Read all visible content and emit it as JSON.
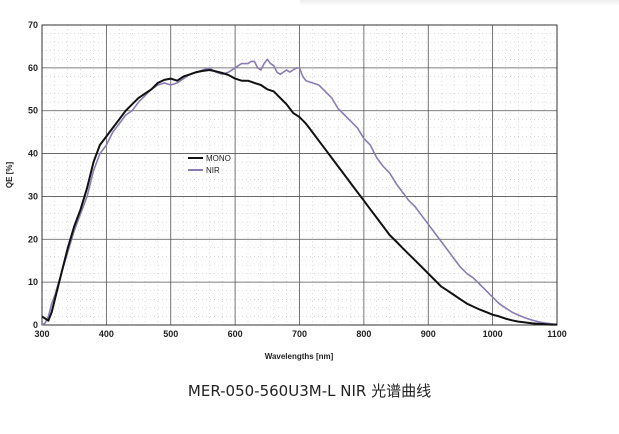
{
  "caption": "MER-050-560U3M-L NIR 光谱曲线",
  "chart_data": {
    "type": "line",
    "title": "",
    "xlabel": "Wavelengths [nm]",
    "ylabel": "QE [%]",
    "xlim": [
      300,
      1100
    ],
    "ylim": [
      0,
      70
    ],
    "xticks": [
      300,
      400,
      500,
      600,
      700,
      800,
      900,
      1000,
      1100
    ],
    "yticks": [
      0,
      10,
      20,
      30,
      40,
      50,
      60,
      70
    ],
    "grid": true,
    "legend": "center-left",
    "series": [
      {
        "name": "MONO",
        "color": "#111111",
        "x": [
          300,
          305,
          310,
          315,
          320,
          330,
          340,
          350,
          360,
          370,
          380,
          390,
          400,
          410,
          420,
          430,
          440,
          450,
          460,
          470,
          480,
          490,
          500,
          510,
          520,
          530,
          540,
          550,
          560,
          570,
          580,
          590,
          600,
          610,
          620,
          630,
          640,
          650,
          660,
          670,
          680,
          690,
          700,
          710,
          720,
          730,
          740,
          750,
          760,
          770,
          780,
          790,
          800,
          810,
          820,
          830,
          840,
          850,
          860,
          870,
          880,
          890,
          900,
          910,
          920,
          930,
          940,
          950,
          960,
          970,
          980,
          990,
          1000,
          1010,
          1020,
          1030,
          1040,
          1050,
          1060,
          1070,
          1080,
          1090,
          1100
        ],
        "y": [
          2,
          1.5,
          1,
          3,
          6,
          12,
          18,
          23,
          27,
          32,
          38,
          42,
          44,
          46,
          48,
          50,
          51.5,
          53,
          54,
          55,
          56.5,
          57.2,
          57.5,
          57,
          58,
          58.5,
          59,
          59.3,
          59.5,
          59.2,
          58.8,
          58.3,
          57.5,
          57,
          57,
          56.5,
          56,
          55,
          54.5,
          53,
          51.5,
          49.5,
          48.5,
          47,
          45,
          43,
          41,
          39,
          37,
          35,
          33,
          31,
          29,
          27,
          25,
          23,
          21,
          19.5,
          18,
          16.5,
          15,
          13.5,
          12,
          10.5,
          9,
          8,
          7,
          6,
          5,
          4.3,
          3.6,
          3,
          2.4,
          2,
          1.5,
          1.1,
          0.8,
          0.6,
          0.4,
          0.3,
          0.2,
          0.1,
          0.1
        ]
      },
      {
        "name": "NIR",
        "color": "#8a7bb5",
        "x": [
          300,
          305,
          310,
          315,
          320,
          330,
          340,
          350,
          360,
          370,
          380,
          390,
          400,
          410,
          420,
          430,
          440,
          450,
          460,
          470,
          480,
          490,
          500,
          510,
          520,
          530,
          540,
          550,
          560,
          570,
          580,
          590,
          600,
          605,
          610,
          620,
          625,
          630,
          635,
          640,
          645,
          650,
          655,
          660,
          665,
          670,
          675,
          680,
          685,
          690,
          695,
          700,
          705,
          710,
          720,
          730,
          740,
          750,
          760,
          770,
          780,
          790,
          800,
          810,
          820,
          830,
          840,
          850,
          860,
          870,
          880,
          890,
          900,
          910,
          920,
          930,
          940,
          950,
          960,
          970,
          980,
          990,
          1000,
          1010,
          1020,
          1030,
          1040,
          1050,
          1060,
          1070,
          1080,
          1090,
          1100
        ],
        "y": [
          0,
          0.5,
          2,
          5,
          7,
          12,
          17,
          22,
          26,
          30,
          36,
          40,
          42,
          45,
          47,
          49,
          50,
          52,
          53.5,
          55,
          56,
          56.5,
          56,
          56.5,
          57.5,
          58.5,
          59,
          59.5,
          60,
          59,
          58.5,
          59,
          60,
          60.5,
          61,
          61,
          61.5,
          61.5,
          60,
          59.5,
          61,
          62,
          61,
          60.5,
          59,
          58.5,
          59,
          59.5,
          59,
          59.5,
          60,
          60,
          58,
          57,
          56.5,
          56,
          54.5,
          53,
          50.5,
          49,
          47.5,
          46,
          43.5,
          42,
          39,
          37,
          35.5,
          33,
          31,
          29,
          27.5,
          25.5,
          23.5,
          21.5,
          19.5,
          17.5,
          15.5,
          13.5,
          12,
          11,
          9.5,
          8,
          6.5,
          5,
          4,
          3,
          2.3,
          1.7,
          1.2,
          0.8,
          0.5,
          0.3,
          0.1
        ]
      }
    ]
  }
}
